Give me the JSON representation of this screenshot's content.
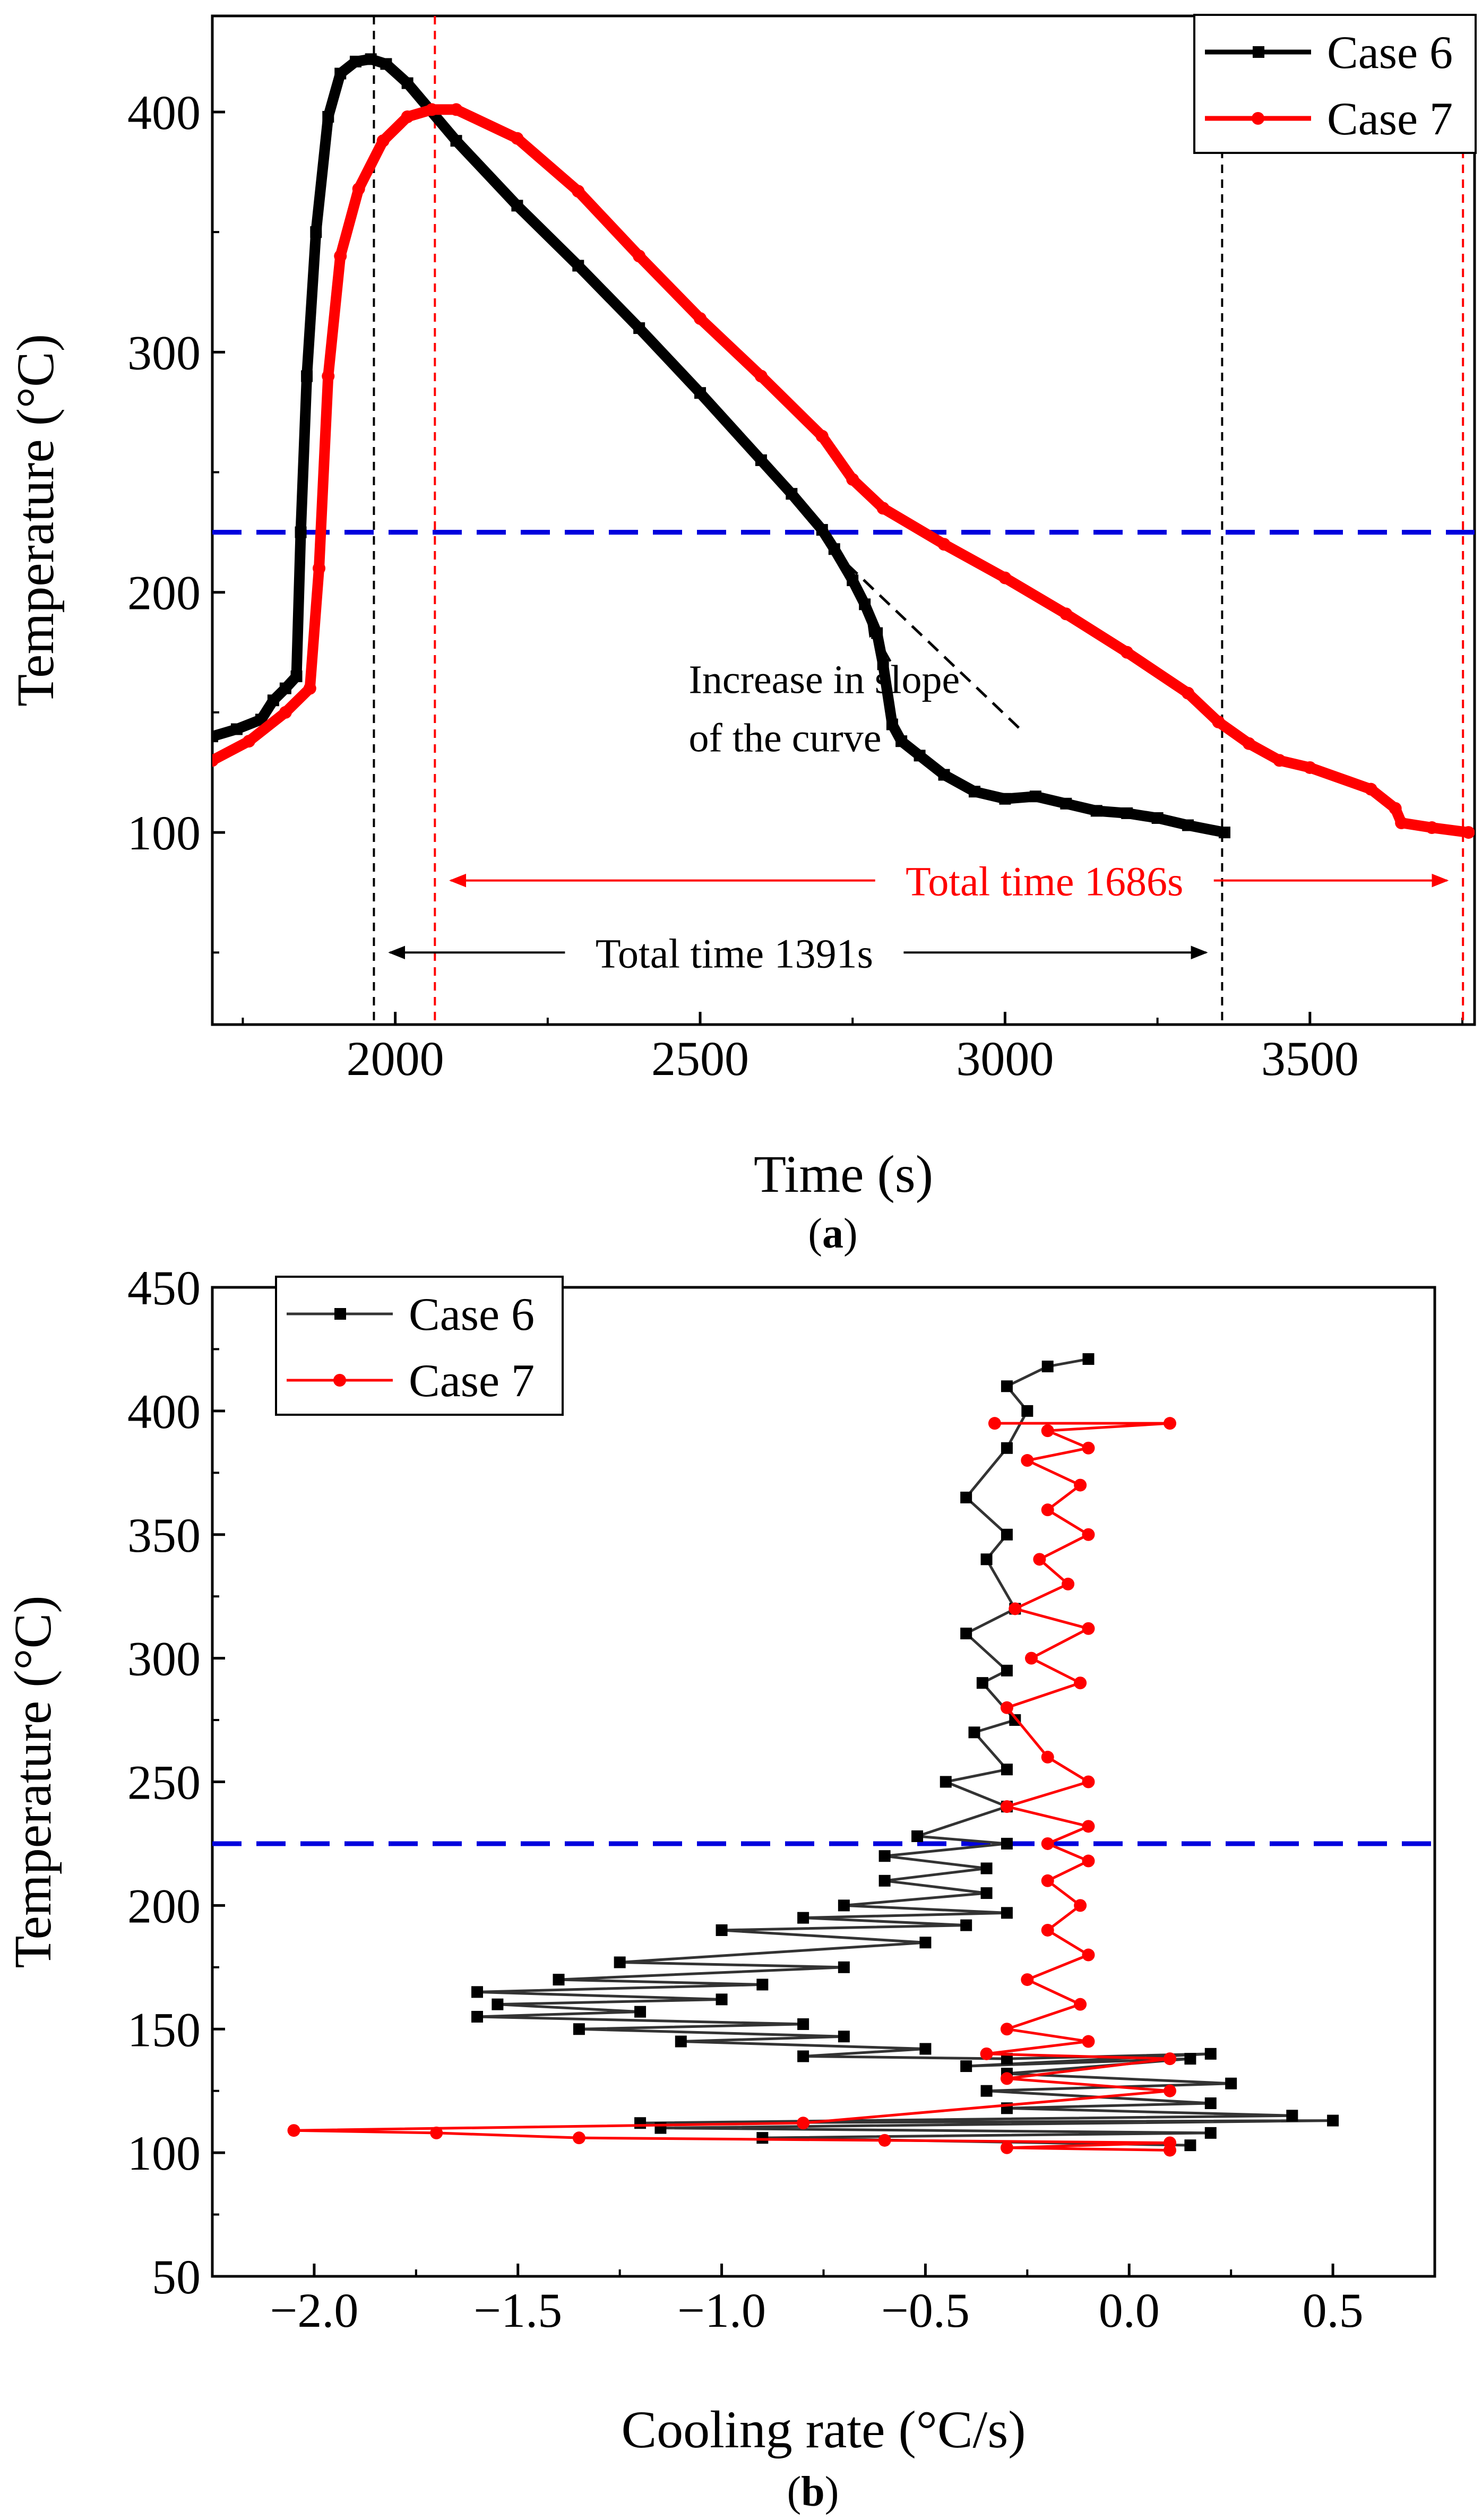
{
  "chart_data": [
    {
      "type": "line",
      "panel_label": "a",
      "xlabel": "Time (s)",
      "ylabel": "Temperature (°C)",
      "xlim": [
        1700,
        3770
      ],
      "ylim": [
        20,
        440
      ],
      "xticks": [
        2000,
        2500,
        3000,
        3500
      ],
      "yticks": [
        100,
        200,
        300,
        400
      ],
      "grid": false,
      "legend_position": "top-right",
      "series": [
        {
          "name": "Case 6",
          "color": "#000000",
          "marker": "square",
          "x": [
            1700,
            1740,
            1780,
            1800,
            1820,
            1838,
            1845,
            1855,
            1870,
            1890,
            1910,
            1935,
            1960,
            1985,
            2020,
            2100,
            2200,
            2300,
            2400,
            2500,
            2600,
            2650,
            2700,
            2720,
            2750,
            2770,
            2790,
            2800,
            2815,
            2830,
            2860,
            2900,
            2950,
            3000,
            3050,
            3100,
            3150,
            3200,
            3250,
            3300,
            3360
          ],
          "y": [
            140,
            143,
            147,
            155,
            160,
            165,
            225,
            290,
            350,
            398,
            416,
            421,
            422,
            420,
            412,
            388,
            361,
            336,
            310,
            283,
            255,
            241,
            226,
            218,
            205,
            195,
            183,
            170,
            145,
            138,
            132,
            124,
            117,
            114,
            115,
            112,
            109,
            108,
            106,
            103,
            100
          ]
        },
        {
          "name": "Case 7",
          "color": "#ff0000",
          "marker": "circle",
          "x": [
            1700,
            1760,
            1820,
            1860,
            1875,
            1890,
            1910,
            1940,
            1980,
            2020,
            2060,
            2100,
            2200,
            2300,
            2400,
            2500,
            2600,
            2700,
            2750,
            2800,
            2900,
            3000,
            3100,
            3200,
            3300,
            3350,
            3400,
            3450,
            3500,
            3600,
            3640,
            3650,
            3700,
            3760
          ],
          "y": [
            130,
            138,
            150,
            160,
            210,
            290,
            340,
            368,
            388,
            398,
            401,
            401,
            389,
            367,
            340,
            314,
            290,
            265,
            247,
            235,
            220,
            206,
            191,
            175,
            158,
            146,
            137,
            130,
            127,
            118,
            110,
            104,
            102,
            100
          ]
        }
      ],
      "reference_lines": [
        {
          "orientation": "horizontal",
          "y": 225,
          "color": "#0000dd",
          "style": "dashed"
        },
        {
          "orientation": "vertical",
          "x": 1965,
          "color": "#000000",
          "style": "dashed"
        },
        {
          "orientation": "vertical",
          "x": 2065,
          "color": "#ff0000",
          "style": "dashed"
        },
        {
          "orientation": "vertical",
          "x": 3356,
          "color": "#000000",
          "style": "dashed"
        },
        {
          "orientation": "vertical",
          "x": 3751,
          "color": "#ff0000",
          "style": "dashed"
        }
      ],
      "tangent_line": {
        "x": [
          2715,
          3025
        ],
        "y": [
          218,
          143
        ],
        "color": "#000000",
        "style": "dashed"
      },
      "annotations": [
        {
          "text_lines": [
            "Increase in slope",
            "of the curve"
          ],
          "x": 2490,
          "y": 158,
          "arrow_to": {
            "x": 2775,
            "y": 188
          }
        },
        {
          "text": "Total time 1686s",
          "from": 2065,
          "to": 3751,
          "y": 80,
          "color": "#ff0000"
        },
        {
          "text": "Total time 1391s",
          "from": 1965,
          "to": 3356,
          "y": 50,
          "color": "#000000"
        }
      ]
    },
    {
      "type": "line",
      "panel_label": "b",
      "xlabel": "Cooling rate (°C/s)",
      "ylabel": "Temperature (°C)",
      "xlim": [
        -2.25,
        0.75
      ],
      "ylim": [
        50,
        450
      ],
      "xticks": [
        -2.0,
        -1.5,
        -1.0,
        -0.5,
        0.0,
        0.5
      ],
      "yticks": [
        50,
        100,
        150,
        200,
        250,
        300,
        350,
        400,
        450
      ],
      "grid": false,
      "legend_position": "top-left",
      "series": [
        {
          "name": "Case 6",
          "color": "#000000",
          "marker": "square",
          "x": [
            -0.1,
            -0.2,
            -0.3,
            -0.25,
            -0.3,
            -0.4,
            -0.3,
            -0.35,
            -0.28,
            -0.4,
            -0.3,
            -0.36,
            -0.28,
            -0.38,
            -0.3,
            -0.45,
            -0.3,
            -0.52,
            -0.3,
            -0.6,
            -0.35,
            -0.6,
            -0.35,
            -0.7,
            -0.3,
            -0.8,
            -0.4,
            -1.0,
            -0.5,
            -1.25,
            -0.7,
            -1.4,
            -0.9,
            -1.6,
            -1.0,
            -1.55,
            -1.2,
            -1.6,
            -0.8,
            -1.35,
            -0.7,
            -1.1,
            -0.5,
            -0.8,
            -0.3,
            0.2,
            -0.4,
            0.15,
            -0.3,
            0.25,
            -0.35,
            0.2,
            -0.3,
            0.4,
            -1.2,
            0.5,
            -1.15,
            0.2,
            -0.9,
            0.15
          ],
          "y": [
            421,
            418,
            410,
            400,
            385,
            365,
            350,
            340,
            320,
            310,
            295,
            290,
            275,
            270,
            255,
            250,
            240,
            228,
            225,
            220,
            215,
            210,
            205,
            200,
            197,
            195,
            192,
            190,
            185,
            177,
            175,
            170,
            168,
            165,
            162,
            160,
            157,
            155,
            152,
            150,
            147,
            145,
            142,
            139,
            138,
            140,
            135,
            138,
            132,
            128,
            125,
            120,
            118,
            115,
            112,
            113,
            110,
            108,
            106,
            103
          ]
        },
        {
          "name": "Case 7",
          "color": "#ff0000",
          "marker": "circle",
          "x": [
            -0.33,
            0.1,
            -0.2,
            -0.1,
            -0.25,
            -0.12,
            -0.2,
            -0.1,
            -0.22,
            -0.15,
            -0.28,
            -0.1,
            -0.24,
            -0.12,
            -0.3,
            -0.2,
            -0.1,
            -0.3,
            -0.1,
            -0.2,
            -0.1,
            -0.2,
            -0.12,
            -0.2,
            -0.1,
            -0.25,
            -0.12,
            -0.3,
            -0.1,
            -0.35,
            0.1,
            -0.3,
            0.1,
            -0.8,
            -2.05,
            -1.7,
            -1.35,
            -0.6,
            0.1,
            -0.3,
            0.1
          ],
          "y": [
            395,
            395,
            392,
            385,
            380,
            370,
            360,
            350,
            340,
            330,
            320,
            312,
            300,
            290,
            280,
            260,
            250,
            240,
            232,
            225,
            218,
            210,
            200,
            190,
            180,
            170,
            160,
            150,
            145,
            140,
            138,
            130,
            125,
            112,
            109,
            108,
            106,
            105,
            104,
            102,
            101
          ]
        }
      ],
      "reference_lines": [
        {
          "orientation": "horizontal",
          "y": 225,
          "color": "#0000dd",
          "style": "dashed"
        }
      ]
    }
  ]
}
